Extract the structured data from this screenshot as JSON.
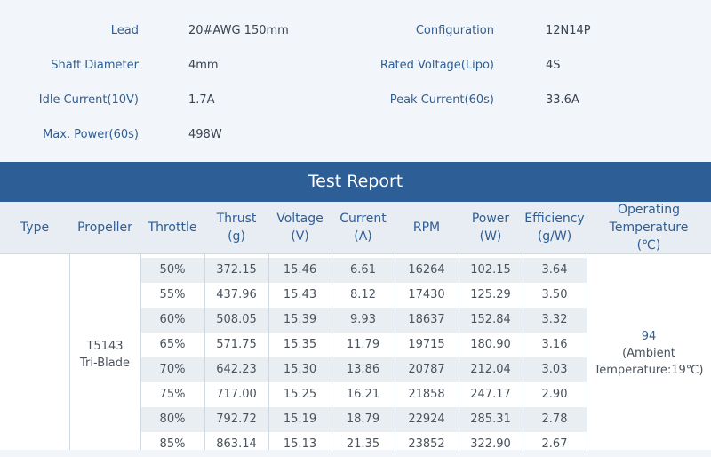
{
  "specs": {
    "lead_label": "Lead",
    "lead_value": "20#AWG 150mm",
    "configuration_label": "Configuration",
    "configuration_value": "12N14P",
    "shaft_label": "Shaft Diameter",
    "shaft_value": "4mm",
    "rated_voltage_label": "Rated Voltage(Lipo)",
    "rated_voltage_value": "4S",
    "idle_current_label": "Idle Current(10V)",
    "idle_current_value": "1.7A",
    "peak_current_label": "Peak Current(60s)",
    "peak_current_value": "33.6A",
    "max_power_label": "Max. Power(60s)",
    "max_power_value": "498W"
  },
  "report_title": "Test Report",
  "headers": {
    "type": "Type",
    "propeller": "Propeller",
    "throttle": "Throttle",
    "thrust_1": "Thrust",
    "thrust_2": "(g)",
    "voltage_1": "Voltage",
    "voltage_2": "(V)",
    "current_1": "Current",
    "current_2": "(A)",
    "rpm": "RPM",
    "power_1": "Power",
    "power_2": "(W)",
    "efficiency_1": "Efficiency",
    "efficiency_2": "(g/W)",
    "temp_1": "Operating",
    "temp_2": "Temperature",
    "temp_3": "(℃)"
  },
  "propeller": {
    "line1": "T5143",
    "line2": "Tri-Blade"
  },
  "temperature": {
    "value": "94",
    "line1": "(Ambient",
    "line2": "Temperature:19℃)"
  },
  "rows": [
    [
      "50%",
      "372.15",
      "15.46",
      "6.61",
      "16264",
      "102.15",
      "3.64"
    ],
    [
      "55%",
      "437.96",
      "15.43",
      "8.12",
      "17430",
      "125.29",
      "3.50"
    ],
    [
      "60%",
      "508.05",
      "15.39",
      "9.93",
      "18637",
      "152.84",
      "3.32"
    ],
    [
      "65%",
      "571.75",
      "15.35",
      "11.79",
      "19715",
      "180.90",
      "3.16"
    ],
    [
      "70%",
      "642.23",
      "15.30",
      "13.86",
      "20787",
      "212.04",
      "3.03"
    ],
    [
      "75%",
      "717.00",
      "15.25",
      "16.21",
      "21858",
      "247.17",
      "2.90"
    ],
    [
      "80%",
      "792.72",
      "15.19",
      "18.79",
      "22924",
      "285.31",
      "2.78"
    ],
    [
      "85%",
      "863.14",
      "15.13",
      "21.35",
      "23852",
      "322.90",
      "2.67"
    ]
  ]
}
